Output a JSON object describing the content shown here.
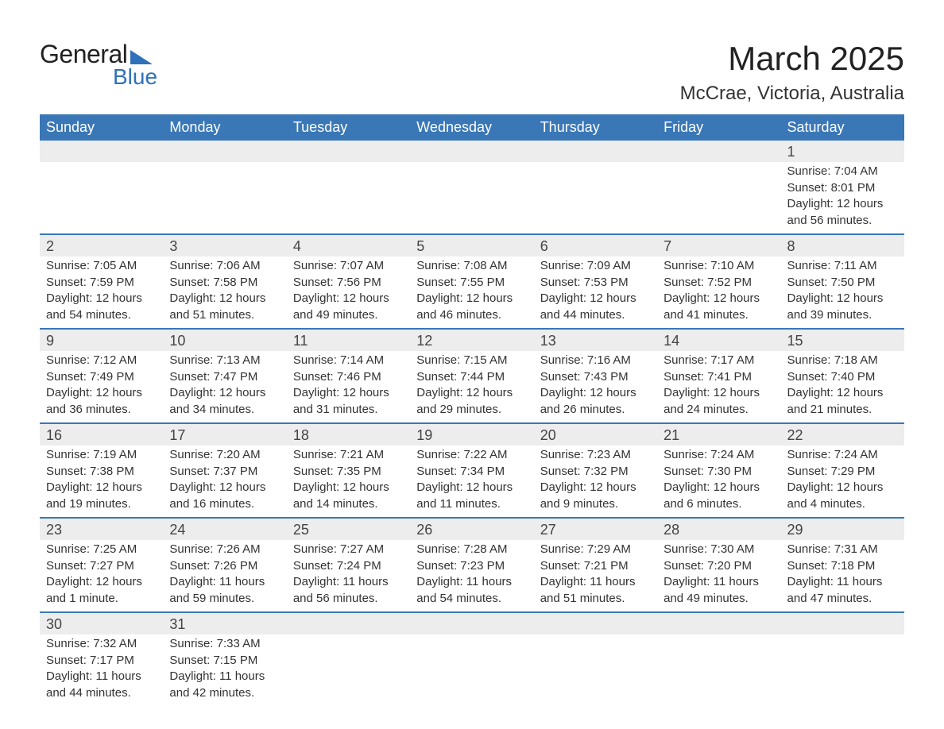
{
  "logo": {
    "text1": "General",
    "text2": "Blue"
  },
  "title": "March 2025",
  "location": "McCrae, Victoria, Australia",
  "colors": {
    "header_bg": "#3a77b7",
    "header_text": "#ffffff",
    "daynum_bg": "#ededed",
    "row_border": "#3a77b7",
    "logo_accent": "#2f72b9",
    "body_text": "#333333"
  },
  "day_headers": [
    "Sunday",
    "Monday",
    "Tuesday",
    "Wednesday",
    "Thursday",
    "Friday",
    "Saturday"
  ],
  "weeks": [
    [
      null,
      null,
      null,
      null,
      null,
      null,
      {
        "n": "1",
        "sr": "Sunrise: 7:04 AM",
        "ss": "Sunset: 8:01 PM",
        "d1": "Daylight: 12 hours",
        "d2": "and 56 minutes."
      }
    ],
    [
      {
        "n": "2",
        "sr": "Sunrise: 7:05 AM",
        "ss": "Sunset: 7:59 PM",
        "d1": "Daylight: 12 hours",
        "d2": "and 54 minutes."
      },
      {
        "n": "3",
        "sr": "Sunrise: 7:06 AM",
        "ss": "Sunset: 7:58 PM",
        "d1": "Daylight: 12 hours",
        "d2": "and 51 minutes."
      },
      {
        "n": "4",
        "sr": "Sunrise: 7:07 AM",
        "ss": "Sunset: 7:56 PM",
        "d1": "Daylight: 12 hours",
        "d2": "and 49 minutes."
      },
      {
        "n": "5",
        "sr": "Sunrise: 7:08 AM",
        "ss": "Sunset: 7:55 PM",
        "d1": "Daylight: 12 hours",
        "d2": "and 46 minutes."
      },
      {
        "n": "6",
        "sr": "Sunrise: 7:09 AM",
        "ss": "Sunset: 7:53 PM",
        "d1": "Daylight: 12 hours",
        "d2": "and 44 minutes."
      },
      {
        "n": "7",
        "sr": "Sunrise: 7:10 AM",
        "ss": "Sunset: 7:52 PM",
        "d1": "Daylight: 12 hours",
        "d2": "and 41 minutes."
      },
      {
        "n": "8",
        "sr": "Sunrise: 7:11 AM",
        "ss": "Sunset: 7:50 PM",
        "d1": "Daylight: 12 hours",
        "d2": "and 39 minutes."
      }
    ],
    [
      {
        "n": "9",
        "sr": "Sunrise: 7:12 AM",
        "ss": "Sunset: 7:49 PM",
        "d1": "Daylight: 12 hours",
        "d2": "and 36 minutes."
      },
      {
        "n": "10",
        "sr": "Sunrise: 7:13 AM",
        "ss": "Sunset: 7:47 PM",
        "d1": "Daylight: 12 hours",
        "d2": "and 34 minutes."
      },
      {
        "n": "11",
        "sr": "Sunrise: 7:14 AM",
        "ss": "Sunset: 7:46 PM",
        "d1": "Daylight: 12 hours",
        "d2": "and 31 minutes."
      },
      {
        "n": "12",
        "sr": "Sunrise: 7:15 AM",
        "ss": "Sunset: 7:44 PM",
        "d1": "Daylight: 12 hours",
        "d2": "and 29 minutes."
      },
      {
        "n": "13",
        "sr": "Sunrise: 7:16 AM",
        "ss": "Sunset: 7:43 PM",
        "d1": "Daylight: 12 hours",
        "d2": "and 26 minutes."
      },
      {
        "n": "14",
        "sr": "Sunrise: 7:17 AM",
        "ss": "Sunset: 7:41 PM",
        "d1": "Daylight: 12 hours",
        "d2": "and 24 minutes."
      },
      {
        "n": "15",
        "sr": "Sunrise: 7:18 AM",
        "ss": "Sunset: 7:40 PM",
        "d1": "Daylight: 12 hours",
        "d2": "and 21 minutes."
      }
    ],
    [
      {
        "n": "16",
        "sr": "Sunrise: 7:19 AM",
        "ss": "Sunset: 7:38 PM",
        "d1": "Daylight: 12 hours",
        "d2": "and 19 minutes."
      },
      {
        "n": "17",
        "sr": "Sunrise: 7:20 AM",
        "ss": "Sunset: 7:37 PM",
        "d1": "Daylight: 12 hours",
        "d2": "and 16 minutes."
      },
      {
        "n": "18",
        "sr": "Sunrise: 7:21 AM",
        "ss": "Sunset: 7:35 PM",
        "d1": "Daylight: 12 hours",
        "d2": "and 14 minutes."
      },
      {
        "n": "19",
        "sr": "Sunrise: 7:22 AM",
        "ss": "Sunset: 7:34 PM",
        "d1": "Daylight: 12 hours",
        "d2": "and 11 minutes."
      },
      {
        "n": "20",
        "sr": "Sunrise: 7:23 AM",
        "ss": "Sunset: 7:32 PM",
        "d1": "Daylight: 12 hours",
        "d2": "and 9 minutes."
      },
      {
        "n": "21",
        "sr": "Sunrise: 7:24 AM",
        "ss": "Sunset: 7:30 PM",
        "d1": "Daylight: 12 hours",
        "d2": "and 6 minutes."
      },
      {
        "n": "22",
        "sr": "Sunrise: 7:24 AM",
        "ss": "Sunset: 7:29 PM",
        "d1": "Daylight: 12 hours",
        "d2": "and 4 minutes."
      }
    ],
    [
      {
        "n": "23",
        "sr": "Sunrise: 7:25 AM",
        "ss": "Sunset: 7:27 PM",
        "d1": "Daylight: 12 hours",
        "d2": "and 1 minute."
      },
      {
        "n": "24",
        "sr": "Sunrise: 7:26 AM",
        "ss": "Sunset: 7:26 PM",
        "d1": "Daylight: 11 hours",
        "d2": "and 59 minutes."
      },
      {
        "n": "25",
        "sr": "Sunrise: 7:27 AM",
        "ss": "Sunset: 7:24 PM",
        "d1": "Daylight: 11 hours",
        "d2": "and 56 minutes."
      },
      {
        "n": "26",
        "sr": "Sunrise: 7:28 AM",
        "ss": "Sunset: 7:23 PM",
        "d1": "Daylight: 11 hours",
        "d2": "and 54 minutes."
      },
      {
        "n": "27",
        "sr": "Sunrise: 7:29 AM",
        "ss": "Sunset: 7:21 PM",
        "d1": "Daylight: 11 hours",
        "d2": "and 51 minutes."
      },
      {
        "n": "28",
        "sr": "Sunrise: 7:30 AM",
        "ss": "Sunset: 7:20 PM",
        "d1": "Daylight: 11 hours",
        "d2": "and 49 minutes."
      },
      {
        "n": "29",
        "sr": "Sunrise: 7:31 AM",
        "ss": "Sunset: 7:18 PM",
        "d1": "Daylight: 11 hours",
        "d2": "and 47 minutes."
      }
    ],
    [
      {
        "n": "30",
        "sr": "Sunrise: 7:32 AM",
        "ss": "Sunset: 7:17 PM",
        "d1": "Daylight: 11 hours",
        "d2": "and 44 minutes."
      },
      {
        "n": "31",
        "sr": "Sunrise: 7:33 AM",
        "ss": "Sunset: 7:15 PM",
        "d1": "Daylight: 11 hours",
        "d2": "and 42 minutes."
      },
      null,
      null,
      null,
      null,
      null
    ]
  ]
}
